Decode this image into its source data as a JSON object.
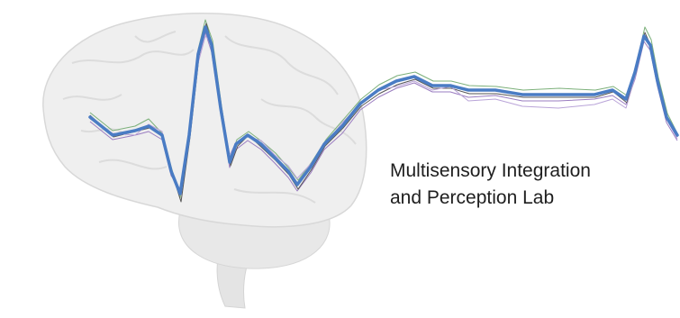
{
  "text": {
    "line1": "Multisensory Integration",
    "line2": "and Perception Lab"
  }
}
